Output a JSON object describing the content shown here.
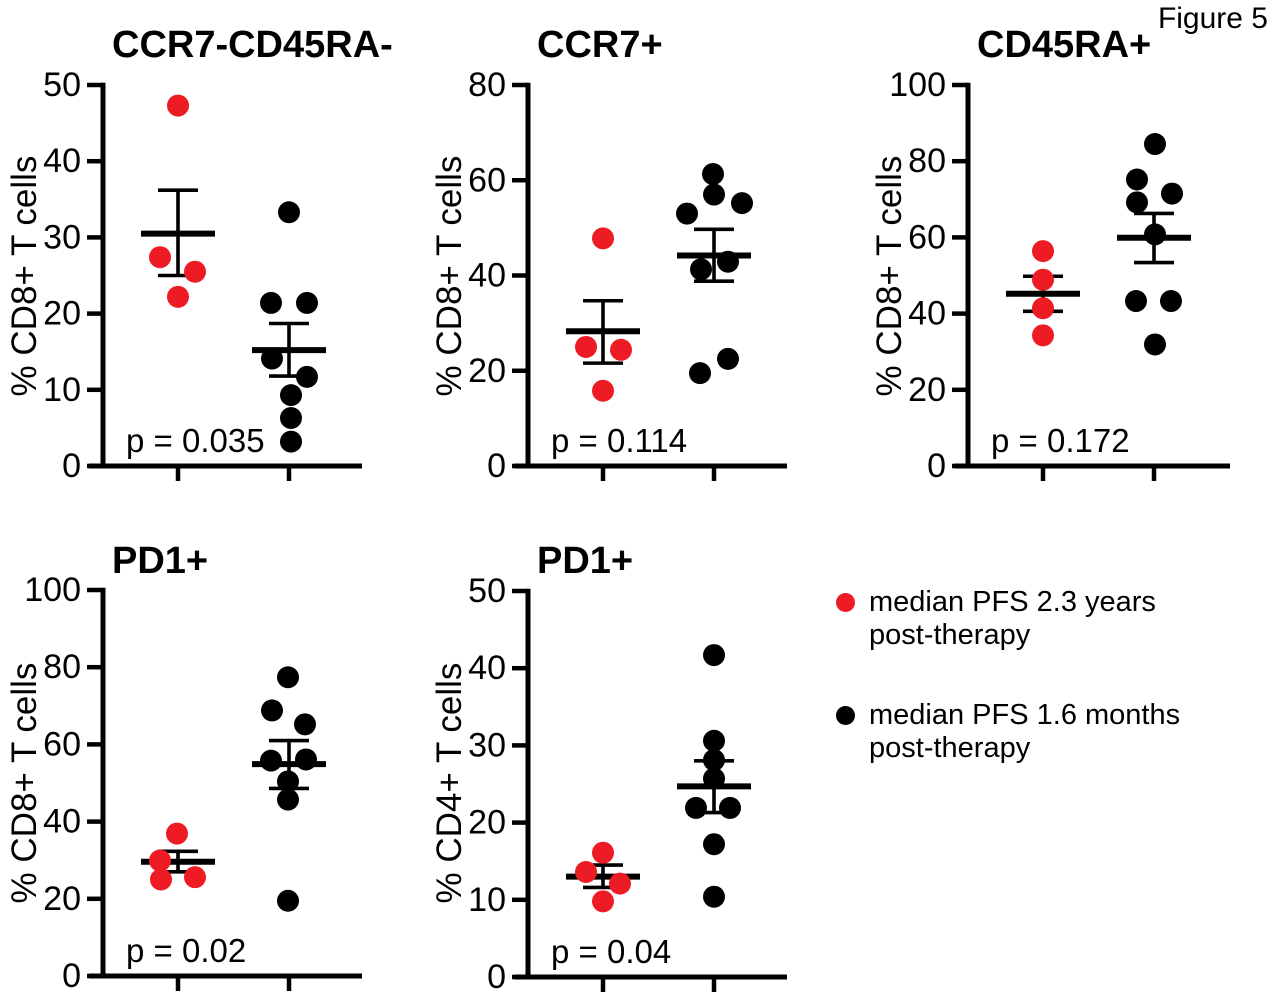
{
  "figure_label": "Figure 5",
  "colors": {
    "red": "#ed1c24",
    "black": "#000000",
    "background": "#ffffff"
  },
  "legend": [
    {
      "color": "#ed1c24",
      "lines": [
        "median PFS 2.3 years",
        "post-therapy"
      ]
    },
    {
      "color": "#000000",
      "lines": [
        "median PFS 1.6 months",
        "post-therapy"
      ]
    }
  ],
  "chart_data": [
    {
      "type": "scatter",
      "title": "CCR7-CD45RA-",
      "ylabel": "% CD8+ T cells",
      "p_label": "p = 0.035",
      "ylim": [
        0,
        50
      ],
      "yticks": [
        0,
        10,
        20,
        30,
        40,
        50
      ],
      "grid": false,
      "groups": [
        {
          "name": "median PFS 2.3 years post-therapy",
          "color": "#ed1c24",
          "mean": 30.5,
          "sem_high": 36.2,
          "sem_low": 25.0,
          "points": [
            {
              "v": 47.3,
              "dx": 0
            },
            {
              "v": 27.4,
              "dx": -18
            },
            {
              "v": 25.5,
              "dx": 17
            },
            {
              "v": 22.2,
              "dx": 0
            }
          ]
        },
        {
          "name": "median PFS 1.6 months post-therapy",
          "color": "#000000",
          "mean": 15.2,
          "sem_high": 18.7,
          "sem_low": 11.8,
          "points": [
            {
              "v": 33.3,
              "dx": 0
            },
            {
              "v": 21.4,
              "dx": -18
            },
            {
              "v": 21.4,
              "dx": 18
            },
            {
              "v": 14.1,
              "dx": -17
            },
            {
              "v": 11.7,
              "dx": 18
            },
            {
              "v": 9.3,
              "dx": 2
            },
            {
              "v": 6.3,
              "dx": 2
            },
            {
              "v": 3.2,
              "dx": 2
            }
          ]
        }
      ]
    },
    {
      "type": "scatter",
      "title": "CCR7+",
      "ylabel": "% CD8+ T cells",
      "p_label": "p = 0.114",
      "ylim": [
        0,
        80
      ],
      "yticks": [
        0,
        20,
        40,
        60,
        80
      ],
      "grid": false,
      "groups": [
        {
          "name": "median PFS 2.3 years post-therapy",
          "color": "#ed1c24",
          "mean": 28.3,
          "sem_high": 34.7,
          "sem_low": 21.6,
          "points": [
            {
              "v": 47.8,
              "dx": 0
            },
            {
              "v": 25.0,
              "dx": -17
            },
            {
              "v": 24.4,
              "dx": 18
            },
            {
              "v": 15.8,
              "dx": 0
            }
          ]
        },
        {
          "name": "median PFS 1.6 months post-therapy",
          "color": "#000000",
          "mean": 44.2,
          "sem_high": 49.7,
          "sem_low": 38.8,
          "points": [
            {
              "v": 61.3,
              "dx": -1
            },
            {
              "v": 57.0,
              "dx": 0
            },
            {
              "v": 55.2,
              "dx": 28
            },
            {
              "v": 53.0,
              "dx": -27
            },
            {
              "v": 42.9,
              "dx": 14
            },
            {
              "v": 41.3,
              "dx": -13
            },
            {
              "v": 22.5,
              "dx": 14
            },
            {
              "v": 19.5,
              "dx": -14
            }
          ]
        }
      ]
    },
    {
      "type": "scatter",
      "title": "CD45RA+",
      "ylabel": "% CD8+ T cells",
      "p_label": "p = 0.172",
      "ylim": [
        0,
        100
      ],
      "yticks": [
        0,
        20,
        40,
        60,
        80,
        100
      ],
      "grid": false,
      "groups": [
        {
          "name": "median PFS 2.3 years post-therapy",
          "color": "#ed1c24",
          "mean": 45.2,
          "sem_high": 49.8,
          "sem_low": 40.6,
          "points": [
            {
              "v": 56.4,
              "dx": 0
            },
            {
              "v": 48.9,
              "dx": 0
            },
            {
              "v": 41.4,
              "dx": 0
            },
            {
              "v": 34.3,
              "dx": 0
            }
          ]
        },
        {
          "name": "median PFS 1.6 months post-therapy",
          "color": "#000000",
          "mean": 59.9,
          "sem_high": 66.3,
          "sem_low": 53.4,
          "points": [
            {
              "v": 84.5,
              "dx": 1
            },
            {
              "v": 75.2,
              "dx": -17
            },
            {
              "v": 71.5,
              "dx": 18
            },
            {
              "v": 69.2,
              "dx": -17
            },
            {
              "v": 60.8,
              "dx": 1
            },
            {
              "v": 43.3,
              "dx": -18
            },
            {
              "v": 43.3,
              "dx": 17
            },
            {
              "v": 31.9,
              "dx": 1
            }
          ]
        }
      ]
    },
    {
      "type": "scatter",
      "title": "PD1+",
      "ylabel": "% CD8+ T cells",
      "p_label": "p = 0.02",
      "ylim": [
        0,
        100
      ],
      "yticks": [
        0,
        20,
        40,
        60,
        80,
        100
      ],
      "grid": false,
      "groups": [
        {
          "name": "median PFS 2.3 years post-therapy",
          "color": "#ed1c24",
          "mean": 29.6,
          "sem_high": 32.3,
          "sem_low": 27.0,
          "points": [
            {
              "v": 36.9,
              "dx": -1
            },
            {
              "v": 29.9,
              "dx": -18
            },
            {
              "v": 25.0,
              "dx": -17
            },
            {
              "v": 25.6,
              "dx": 17
            }
          ]
        },
        {
          "name": "median PFS 1.6 months post-therapy",
          "color": "#000000",
          "mean": 54.9,
          "sem_high": 61.0,
          "sem_low": 48.6,
          "points": [
            {
              "v": 77.4,
              "dx": -1
            },
            {
              "v": 68.8,
              "dx": -17
            },
            {
              "v": 65.2,
              "dx": 16
            },
            {
              "v": 56.1,
              "dx": 17
            },
            {
              "v": 55.8,
              "dx": -18
            },
            {
              "v": 50.4,
              "dx": -1
            },
            {
              "v": 45.7,
              "dx": -1
            },
            {
              "v": 19.5,
              "dx": -1
            }
          ]
        }
      ]
    },
    {
      "type": "scatter",
      "title": "PD1+",
      "ylabel": "% CD4+ T cells",
      "p_label": "p = 0.04",
      "ylim": [
        0,
        50
      ],
      "yticks": [
        0,
        10,
        20,
        30,
        40,
        50
      ],
      "grid": false,
      "groups": [
        {
          "name": "median PFS 2.3 years post-therapy",
          "color": "#ed1c24",
          "mean": 13.0,
          "sem_high": 14.5,
          "sem_low": 11.6,
          "points": [
            {
              "v": 16.1,
              "dx": 0
            },
            {
              "v": 13.6,
              "dx": -17
            },
            {
              "v": 12.1,
              "dx": 17
            },
            {
              "v": 9.8,
              "dx": 0
            }
          ]
        },
        {
          "name": "median PFS 1.6 months post-therapy",
          "color": "#000000",
          "mean": 24.7,
          "sem_high": 28.0,
          "sem_low": 21.3,
          "points": [
            {
              "v": 41.7,
              "dx": 0
            },
            {
              "v": 30.6,
              "dx": 0
            },
            {
              "v": 28.1,
              "dx": 0
            },
            {
              "v": 25.7,
              "dx": 0
            },
            {
              "v": 21.9,
              "dx": -18
            },
            {
              "v": 21.9,
              "dx": 16
            },
            {
              "v": 17.2,
              "dx": 0
            },
            {
              "v": 10.4,
              "dx": 0
            }
          ]
        }
      ]
    }
  ]
}
